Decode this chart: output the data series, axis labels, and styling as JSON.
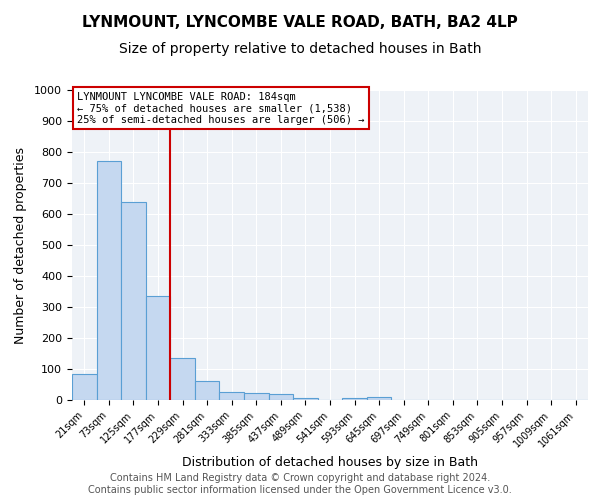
{
  "title1": "LYNMOUNT, LYNCOMBE VALE ROAD, BATH, BA2 4LP",
  "title2": "Size of property relative to detached houses in Bath",
  "xlabel": "Distribution of detached houses by size in Bath",
  "ylabel": "Number of detached properties",
  "categories": [
    "21sqm",
    "73sqm",
    "125sqm",
    "177sqm",
    "229sqm",
    "281sqm",
    "333sqm",
    "385sqm",
    "437sqm",
    "489sqm",
    "541sqm",
    "593sqm",
    "645sqm",
    "697sqm",
    "749sqm",
    "801sqm",
    "853sqm",
    "905sqm",
    "957sqm",
    "1009sqm",
    "1061sqm"
  ],
  "values": [
    83,
    770,
    640,
    335,
    135,
    60,
    25,
    22,
    18,
    8,
    0,
    8,
    10,
    0,
    0,
    0,
    0,
    0,
    0,
    0,
    0
  ],
  "bar_color": "#c5d8f0",
  "bar_edge_color": "#5a9fd4",
  "vline_index": 3,
  "vline_color": "#cc0000",
  "annotation_text": "LYNMOUNT LYNCOMBE VALE ROAD: 184sqm\n← 75% of detached houses are smaller (1,538)\n25% of semi-detached houses are larger (506) →",
  "annotation_box_color": "#cc0000",
  "ylim": [
    0,
    1000
  ],
  "yticks": [
    0,
    100,
    200,
    300,
    400,
    500,
    600,
    700,
    800,
    900,
    1000
  ],
  "bg_color": "#eef2f7",
  "grid_color": "#ffffff",
  "footer_text": "Contains HM Land Registry data © Crown copyright and database right 2024.\nContains public sector information licensed under the Open Government Licence v3.0.",
  "title_fontsize": 11,
  "subtitle_fontsize": 10,
  "annotation_fontsize": 7.5,
  "footer_fontsize": 7,
  "ylabel_fontsize": 9,
  "xlabel_fontsize": 9
}
